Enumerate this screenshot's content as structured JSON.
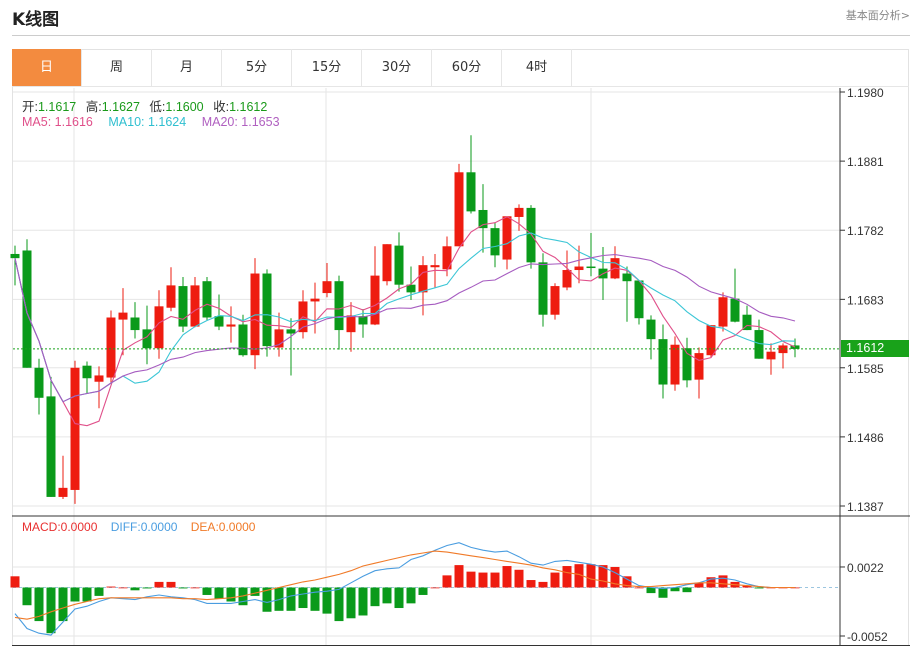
{
  "header": {
    "title": "K线图",
    "fundamental_link": "基本面分析>"
  },
  "tabs": [
    {
      "label": "日",
      "active": true
    },
    {
      "label": "周",
      "active": false
    },
    {
      "label": "月",
      "active": false
    },
    {
      "label": "5分",
      "active": false
    },
    {
      "label": "15分",
      "active": false
    },
    {
      "label": "30分",
      "active": false
    },
    {
      "label": "60分",
      "active": false
    },
    {
      "label": "4时",
      "active": false
    }
  ],
  "ohlc_legend": {
    "open_label": "开:",
    "open": "1.1617",
    "high_label": "高:",
    "high": "1.1627",
    "low_label": "低:",
    "low": "1.1600",
    "close_label": "收:",
    "close": "1.1612"
  },
  "ma_legend": {
    "ma5": "MA5: 1.1616",
    "ma10": "MA10: 1.1624",
    "ma20": "MA20: 1.1653"
  },
  "macd_legend": {
    "macd": "MACD:0.0000",
    "diff": "DIFF:0.0000",
    "dea": "DEA:0.0000"
  },
  "current_price": "1.1612",
  "colors": {
    "up": "#ee1c10",
    "down": "#0a9a1a",
    "ma5": "#e0508a",
    "ma10": "#3cc6d6",
    "ma20": "#a65cc0",
    "diff": "#4a9de0",
    "dea": "#f07a28",
    "accent": "#f38b3f",
    "price_tag": "#19a21a"
  },
  "chart_data": [
    {
      "type": "candlestick",
      "price_ticks": [
        "1.1980",
        "1.1881",
        "1.1782",
        "1.1683",
        "1.1585",
        "1.1486",
        "1.1387"
      ],
      "ylim": [
        1.1387,
        1.198
      ],
      "grid": true,
      "ohlc": [
        [
          1.1748,
          1.176,
          1.1703,
          1.1742
        ],
        [
          1.1753,
          1.1769,
          1.1585,
          1.1585
        ],
        [
          1.1585,
          1.1598,
          1.1518,
          1.1542
        ],
        [
          1.1544,
          1.1572,
          1.14,
          1.14
        ],
        [
          1.14,
          1.1459,
          1.1397,
          1.1413
        ],
        [
          1.141,
          1.1595,
          1.139,
          1.1585
        ],
        [
          1.1588,
          1.1594,
          1.1548,
          1.157
        ],
        [
          1.1565,
          1.1587,
          1.1527,
          1.1574
        ],
        [
          1.1571,
          1.1667,
          1.1564,
          1.1657
        ],
        [
          1.1654,
          1.1699,
          1.1603,
          1.1664
        ],
        [
          1.1657,
          1.1679,
          1.1627,
          1.1639
        ],
        [
          1.164,
          1.1674,
          1.159,
          1.1613
        ],
        [
          1.1613,
          1.1696,
          1.1598,
          1.1673
        ],
        [
          1.1671,
          1.1729,
          1.1666,
          1.1703
        ],
        [
          1.1702,
          1.1715,
          1.1636,
          1.1644
        ],
        [
          1.1644,
          1.1715,
          1.1643,
          1.1703
        ],
        [
          1.1709,
          1.1715,
          1.1653,
          1.1657
        ],
        [
          1.1659,
          1.169,
          1.1639,
          1.1644
        ],
        [
          1.1644,
          1.1673,
          1.1621,
          1.1647
        ],
        [
          1.1647,
          1.1661,
          1.1601,
          1.1603
        ],
        [
          1.1603,
          1.1742,
          1.1583,
          1.172
        ],
        [
          1.172,
          1.1726,
          1.1601,
          1.1616
        ],
        [
          1.1614,
          1.1664,
          1.1601,
          1.164
        ],
        [
          1.164,
          1.1656,
          1.1574,
          1.1634
        ],
        [
          1.1636,
          1.1696,
          1.1627,
          1.168
        ],
        [
          1.168,
          1.1707,
          1.1634,
          1.1684
        ],
        [
          1.1692,
          1.1735,
          1.1686,
          1.1709
        ],
        [
          1.1709,
          1.1717,
          1.1611,
          1.1639
        ],
        [
          1.1636,
          1.1679,
          1.1608,
          1.166
        ],
        [
          1.1659,
          1.1669,
          1.1628,
          1.1647
        ],
        [
          1.1647,
          1.1759,
          1.1646,
          1.1717
        ],
        [
          1.1709,
          1.1762,
          1.1703,
          1.1762
        ],
        [
          1.176,
          1.1779,
          1.1694,
          1.1704
        ],
        [
          1.1704,
          1.173,
          1.1682,
          1.1693
        ],
        [
          1.1693,
          1.1745,
          1.166,
          1.1732
        ],
        [
          1.1729,
          1.1748,
          1.17,
          1.1732
        ],
        [
          1.1726,
          1.1773,
          1.1716,
          1.1759
        ],
        [
          1.1759,
          1.1877,
          1.1759,
          1.1865
        ],
        [
          1.1865,
          1.1918,
          1.1806,
          1.1809
        ],
        [
          1.1811,
          1.1848,
          1.175,
          1.1785
        ],
        [
          1.1785,
          1.1793,
          1.1729,
          1.1746
        ],
        [
          1.174,
          1.1802,
          1.1726,
          1.1802
        ],
        [
          1.1801,
          1.1819,
          1.1781,
          1.1814
        ],
        [
          1.1814,
          1.1818,
          1.1727,
          1.1736
        ],
        [
          1.1736,
          1.1749,
          1.1644,
          1.1661
        ],
        [
          1.1661,
          1.1706,
          1.1654,
          1.1702
        ],
        [
          1.17,
          1.1753,
          1.1696,
          1.1725
        ],
        [
          1.1725,
          1.176,
          1.1706,
          1.173
        ],
        [
          1.173,
          1.1778,
          1.1716,
          1.1729
        ],
        [
          1.1727,
          1.1758,
          1.1682,
          1.1713
        ],
        [
          1.1713,
          1.1759,
          1.1712,
          1.1742
        ],
        [
          1.172,
          1.173,
          1.1651,
          1.1709
        ],
        [
          1.171,
          1.171,
          1.1647,
          1.1656
        ],
        [
          1.1654,
          1.166,
          1.1597,
          1.1626
        ],
        [
          1.1626,
          1.1647,
          1.1541,
          1.1561
        ],
        [
          1.1561,
          1.163,
          1.1552,
          1.1618
        ],
        [
          1.1613,
          1.1628,
          1.1557,
          1.1567
        ],
        [
          1.1568,
          1.1614,
          1.1541,
          1.1606
        ],
        [
          1.1603,
          1.1646,
          1.16,
          1.1646
        ],
        [
          1.1644,
          1.1693,
          1.1637,
          1.1686
        ],
        [
          1.1684,
          1.1727,
          1.165,
          1.1651
        ],
        [
          1.1661,
          1.1674,
          1.1639,
          1.1639
        ],
        [
          1.1639,
          1.1654,
          1.1598,
          1.1598
        ],
        [
          1.1597,
          1.162,
          1.1575,
          1.1608
        ],
        [
          1.1606,
          1.162,
          1.1584,
          1.1617
        ],
        [
          1.1617,
          1.1627,
          1.16,
          1.1612
        ]
      ],
      "moving_averages": [
        "MA5",
        "MA10",
        "MA20"
      ]
    },
    {
      "type": "bar+line",
      "ticks": [
        "0.0022",
        "-0.0052"
      ],
      "ylim": [
        -0.0057,
        0.0066
      ],
      "macd": [
        0.0012,
        -0.0019,
        -0.0036,
        -0.0049,
        -0.0036,
        -0.0015,
        -0.0015,
        -0.0009,
        0.0001,
        0.0,
        -0.0003,
        -0.0001,
        0.0006,
        0.0006,
        -0.0001,
        0.0,
        -0.0008,
        -0.0012,
        -0.0015,
        -0.0019,
        -0.0009,
        -0.0026,
        -0.0025,
        -0.0025,
        -0.0022,
        -0.0025,
        -0.0028,
        -0.0036,
        -0.0033,
        -0.003,
        -0.002,
        -0.0017,
        -0.0022,
        -0.0017,
        -0.0008,
        0.0,
        0.0013,
        0.0024,
        0.0017,
        0.0016,
        0.0016,
        0.0023,
        0.0019,
        0.0008,
        0.0006,
        0.0016,
        0.0023,
        0.0025,
        0.0025,
        0.0024,
        0.0022,
        0.0012,
        0.0,
        -0.0006,
        -0.0011,
        -0.0004,
        -0.0005,
        0.0005,
        0.0011,
        0.0013,
        0.0006,
        0.0002,
        -0.0001,
        0.0,
        0.0,
        0.0
      ],
      "diff": [
        -0.0028,
        -0.0044,
        -0.0049,
        -0.0051,
        -0.0037,
        -0.0023,
        -0.002,
        -0.0015,
        -0.0011,
        -0.0012,
        -0.0013,
        -0.001,
        -0.0008,
        -0.001,
        -0.0011,
        -0.0013,
        -0.0017,
        -0.0017,
        -0.0017,
        -0.0015,
        -0.0013,
        -0.0016,
        -0.0013,
        -0.0009,
        -0.0007,
        -0.0005,
        -0.0004,
        -0.0002,
        0.0005,
        0.0012,
        0.0018,
        0.002,
        0.0021,
        0.003,
        0.0034,
        0.004,
        0.0045,
        0.0048,
        0.0043,
        0.004,
        0.0038,
        0.0039,
        0.0033,
        0.0026,
        0.0024,
        0.0028,
        0.0029,
        0.0027,
        0.0025,
        0.0022,
        0.0016,
        0.0009,
        0.0002,
        0.0,
        -0.0001,
        0.0,
        0.0003,
        0.0005,
        0.0009,
        0.001,
        0.0008,
        0.0004,
        0.0001,
        0.0,
        0.0,
        0.0
      ],
      "dea": [
        -0.0032,
        -0.0034,
        -0.0031,
        -0.0026,
        -0.0022,
        -0.0018,
        -0.0015,
        -0.0012,
        -0.0011,
        -0.0011,
        -0.0011,
        -0.0011,
        -0.0011,
        -0.0011,
        -0.0012,
        -0.0012,
        -0.0013,
        -0.0012,
        -0.0011,
        -0.0009,
        -0.0006,
        -0.0003,
        0.0,
        0.0003,
        0.0006,
        0.0008,
        0.0011,
        0.0014,
        0.0018,
        0.0023,
        0.0026,
        0.0029,
        0.0032,
        0.0035,
        0.0037,
        0.0039,
        0.0038,
        0.0036,
        0.0034,
        0.0032,
        0.003,
        0.0028,
        0.0026,
        0.0024,
        0.0021,
        0.0019,
        0.0016,
        0.0014,
        0.0009,
        0.0007,
        0.0004,
        0.0002,
        0.0001,
        0.0001,
        0.0002,
        0.0003,
        0.0004,
        0.0005,
        0.0005,
        0.0004,
        0.0003,
        0.0002,
        0.0001,
        0.0,
        0.0,
        0.0
      ]
    }
  ]
}
